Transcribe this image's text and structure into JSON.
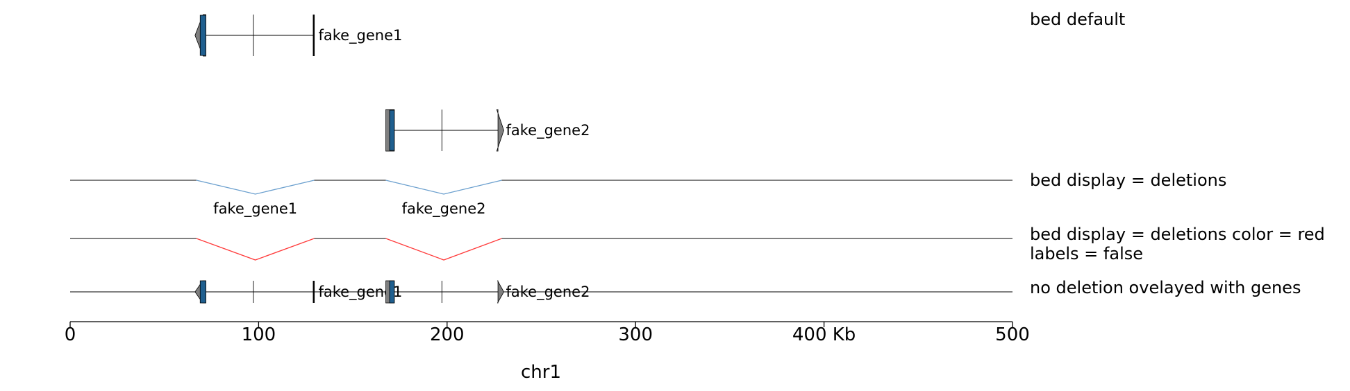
{
  "chart_data": {
    "type": "genome_tracks",
    "region": {
      "chrom": "chr1",
      "start": 0,
      "end": 500000
    },
    "x_axis": {
      "label": "chr1",
      "tick_labels": [
        "0",
        "100",
        "200",
        "300",
        "400 Kb",
        "500"
      ]
    },
    "genes": [
      {
        "name": "fake_gene1",
        "strand": "-",
        "start": 67000,
        "end": 129500,
        "cds_start": 69000,
        "cds_end": 72000,
        "exons": [
          [
            67000,
            72000
          ],
          [
            97000,
            97500
          ],
          [
            129000,
            129500
          ]
        ]
      },
      {
        "name": "fake_gene2",
        "strand": "+",
        "start": 167500,
        "end": 229000,
        "cds_start": 169500,
        "cds_end": 172000,
        "exons": [
          [
            167500,
            172000
          ],
          [
            197000,
            197500
          ],
          [
            227000,
            229000
          ]
        ]
      }
    ],
    "tracks": [
      {
        "title": "bed default",
        "display": "stacked",
        "labels": true
      },
      {
        "title": "bed display = deletions",
        "display": "deletions",
        "color": "#6a9fce",
        "labels": true
      },
      {
        "title": "bed display = deletions color = red\nlabels = false",
        "display": "deletions",
        "color": "#ff3b3b",
        "labels": false
      },
      {
        "title": "no deletion ovelayed with genes",
        "display": "interleaved",
        "labels": true
      }
    ],
    "colors": {
      "utr": "#7f7f7f",
      "cds": "#1f5f8f",
      "line": "#000000"
    }
  }
}
